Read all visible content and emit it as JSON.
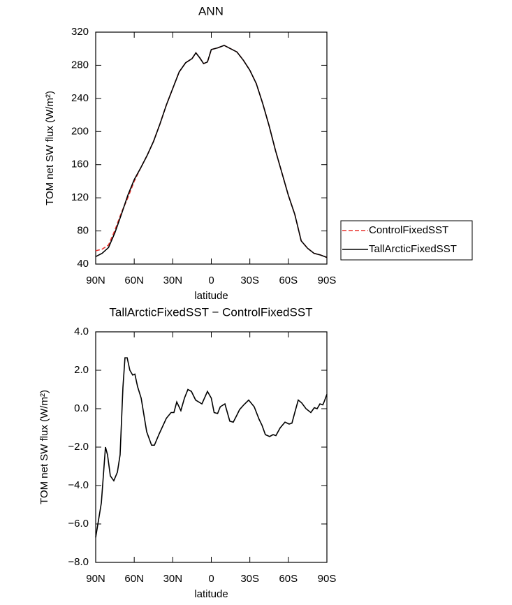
{
  "chart_data": [
    {
      "type": "line",
      "title": "ANN",
      "xlabel": "latitude",
      "ylabel": "TOM net SW flux (W/m²)",
      "x": [
        90,
        85,
        80,
        75,
        70,
        65,
        60,
        55,
        50,
        45,
        40,
        35,
        30,
        25,
        20,
        15,
        12,
        9,
        6,
        3,
        0,
        -5,
        -10,
        -15,
        -20,
        -25,
        -30,
        -35,
        -40,
        -45,
        -50,
        -55,
        -60,
        -65,
        -70,
        -75,
        -80,
        -85,
        -90
      ],
      "series": [
        {
          "name": "ControlFixedSST",
          "color": "#e8302c",
          "linestyle": "dashed",
          "values": [
            56,
            58,
            63,
            81,
            102,
            120,
            140,
            156,
            171,
            188,
            209,
            232,
            252,
            272,
            283,
            288,
            295,
            289,
            282,
            284,
            299,
            301,
            304,
            300,
            296,
            286,
            274,
            258,
            234,
            207,
            177,
            150,
            123,
            100,
            68,
            59,
            53,
            51,
            48
          ]
        },
        {
          "name": "TallArcticFixedSST",
          "color": "#000000",
          "linestyle": "solid",
          "values": [
            49,
            53,
            60,
            78,
            100,
            123,
            142,
            156,
            171,
            188,
            209,
            232,
            252,
            272,
            283,
            288,
            295,
            289,
            282,
            284,
            299,
            301,
            304,
            300,
            296,
            286,
            274,
            258,
            234,
            207,
            177,
            150,
            123,
            100,
            68,
            59,
            53,
            51,
            48
          ]
        }
      ],
      "xlim": [
        90,
        -90
      ],
      "xticks": [
        {
          "value": 90,
          "label": "90N"
        },
        {
          "value": 60,
          "label": "60N"
        },
        {
          "value": 30,
          "label": "30N"
        },
        0,
        {
          "value": -30,
          "label": "30S"
        },
        {
          "value": -60,
          "label": "60S"
        },
        {
          "value": -90,
          "label": "90S"
        }
      ],
      "ylim": [
        40,
        320
      ],
      "yticks": [
        40,
        80,
        120,
        160,
        200,
        240,
        280,
        320
      ],
      "legend": "right"
    },
    {
      "type": "line",
      "title": "TallArcticFixedSST − ControlFixedSST",
      "xlabel": "latitude",
      "ylabel": "TOM net SW flux (W/m²)",
      "x": [
        90,
        85.6,
        82.4,
        80.8,
        78.6,
        75.9,
        73.1,
        71,
        68.8,
        67.2,
        65.5,
        63.4,
        61.2,
        59.5,
        57.4,
        54.6,
        50.3,
        46.5,
        44.3,
        40.5,
        35,
        31.3,
        29.1,
        26.9,
        23.7,
        20.9,
        18.2,
        15.5,
        12.2,
        7.3,
        3,
        0,
        -2.2,
        -4.9,
        -7,
        -10.6,
        -14.4,
        -17.1,
        -19.8,
        -22,
        -25.3,
        -29.1,
        -33.4,
        -37.2,
        -39.4,
        -42.1,
        -45.4,
        -48.1,
        -50.3,
        -53.6,
        -57.4,
        -60.6,
        -62.8,
        -65,
        -67.7,
        -70.4,
        -73.7,
        -77.5,
        -80.2,
        -82.4,
        -84.6,
        -86.8,
        -87.8,
        -90
      ],
      "values": [
        -6.7,
        -4.9,
        -2.0,
        -2.4,
        -3.5,
        -3.75,
        -3.3,
        -2.4,
        1.1,
        2.65,
        2.65,
        2.0,
        1.75,
        1.8,
        1.15,
        0.55,
        -1.2,
        -1.9,
        -1.9,
        -1.3,
        -0.5,
        -0.2,
        -0.2,
        0.35,
        -0.1,
        0.55,
        1.0,
        0.9,
        0.45,
        0.25,
        0.9,
        0.55,
        -0.2,
        -0.25,
        0.1,
        0.25,
        -0.65,
        -0.7,
        -0.35,
        -0.05,
        0.2,
        0.45,
        0.1,
        -0.55,
        -0.85,
        -1.35,
        -1.45,
        -1.35,
        -1.4,
        -1.0,
        -0.7,
        -0.8,
        -0.75,
        -0.2,
        0.45,
        0.3,
        0.0,
        -0.2,
        0.05,
        0.0,
        0.25,
        0.2,
        0.35,
        0.75
      ],
      "color": "#000000",
      "xlim": [
        90,
        -90
      ],
      "xticks": [
        {
          "value": 90,
          "label": "90N"
        },
        {
          "value": 60,
          "label": "60N"
        },
        {
          "value": 30,
          "label": "30N"
        },
        0,
        {
          "value": -30,
          "label": "30S"
        },
        {
          "value": -60,
          "label": "60S"
        },
        {
          "value": -90,
          "label": "90S"
        }
      ],
      "ylim": [
        -8,
        4
      ],
      "yticks": [
        {
          "value": -8,
          "label": "−8.0"
        },
        {
          "value": -6,
          "label": "−6.0"
        },
        {
          "value": -4,
          "label": "−4.0"
        },
        {
          "value": -2,
          "label": "−2.0"
        },
        {
          "value": 0,
          "label": "0.0"
        },
        {
          "value": 2,
          "label": "2.0"
        },
        {
          "value": 4,
          "label": "4.0"
        }
      ]
    }
  ]
}
